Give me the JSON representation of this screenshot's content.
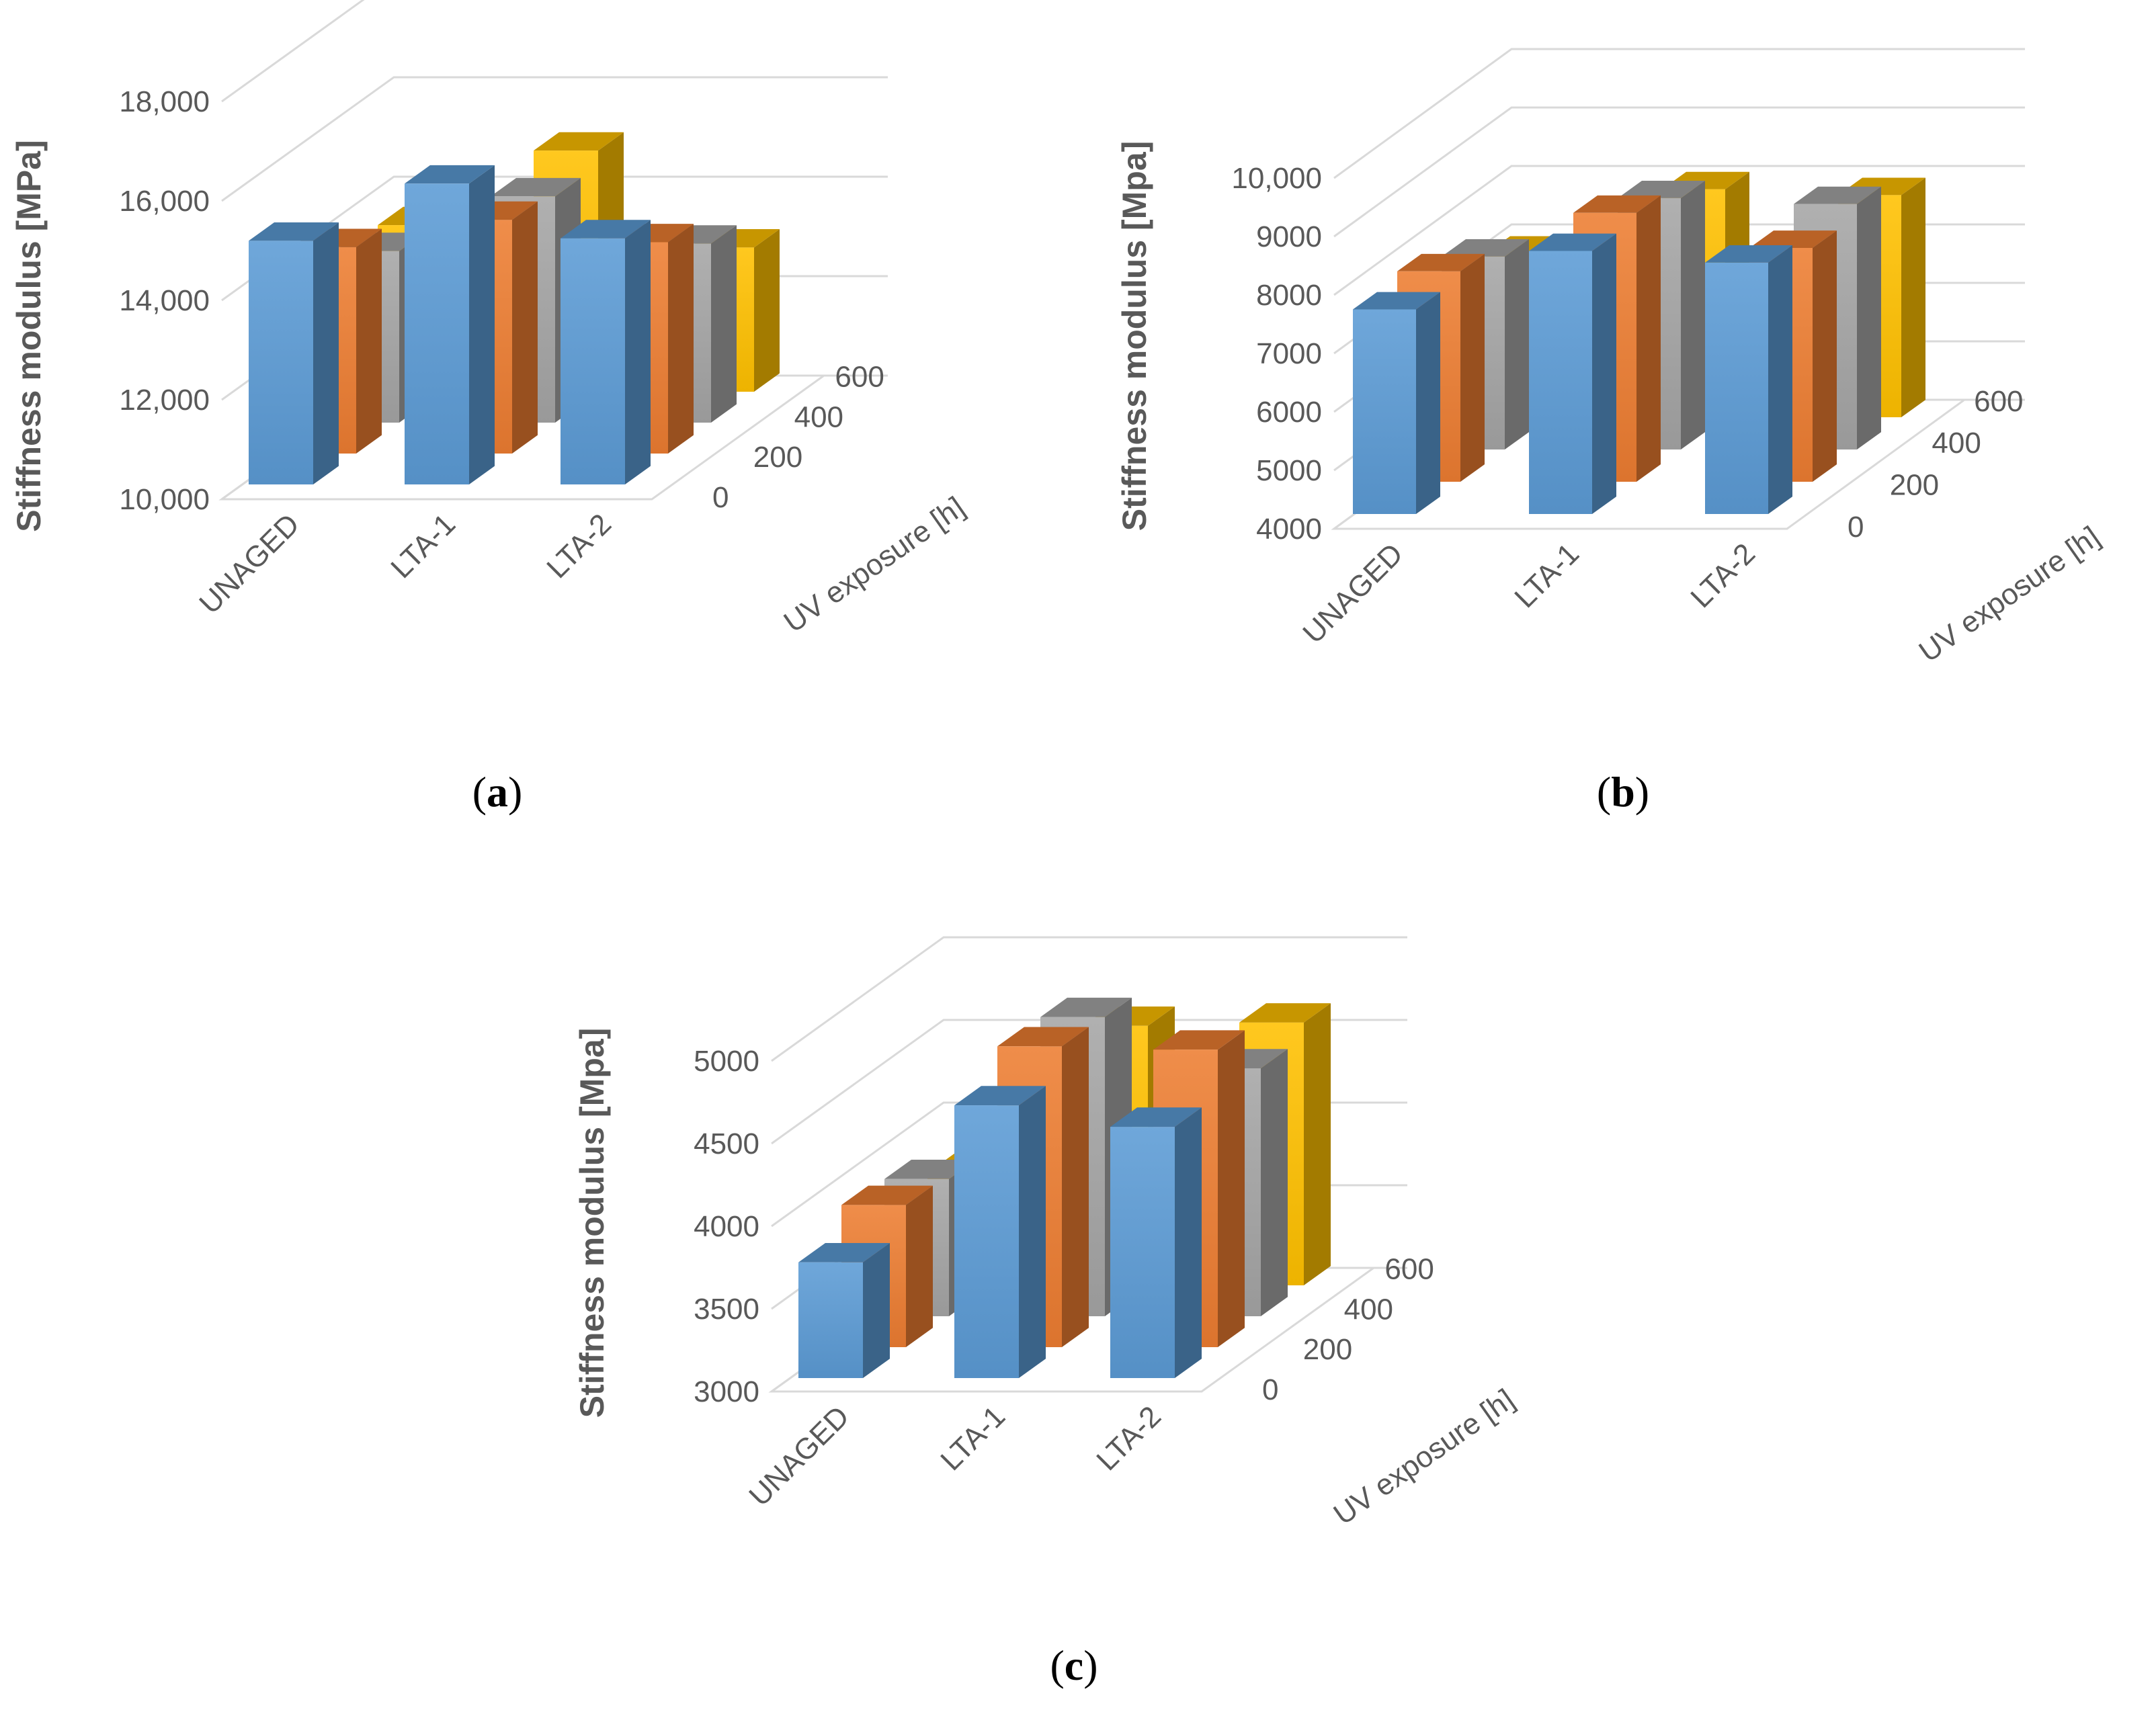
{
  "colors": {
    "series": [
      "#5B9BD5",
      "#ED7D31",
      "#A5A5A5",
      "#FFC000"
    ],
    "gridline": "#D9D9D9",
    "text": "#595959"
  },
  "chart_data": [
    {
      "type": "bar",
      "caption": "a",
      "categories": [
        "UNAGED",
        "LTA-1",
        "LTA-2"
      ],
      "series": [
        {
          "name": "0",
          "values": [
            14900,
            16050,
            14950
          ]
        },
        {
          "name": "200",
          "values": [
            14150,
            14700,
            14250
          ]
        },
        {
          "name": "400",
          "values": [
            13450,
            14550,
            13600
          ]
        },
        {
          "name": "600",
          "values": [
            13350,
            14850,
            12900
          ]
        }
      ],
      "yticks": [
        "10,000",
        "12,000",
        "14,000",
        "16,000",
        "18,000"
      ],
      "ylim": [
        10000,
        18000
      ],
      "ylabel": "Stiffness modulus [MPa]",
      "zlabel": "UV exposure [h]",
      "zticks": [
        "0",
        "200",
        "400",
        "600"
      ]
    },
    {
      "type": "bar",
      "caption": "b",
      "categories": [
        "UNAGED",
        "LTA-1",
        "LTA-2"
      ],
      "series": [
        {
          "name": "0",
          "values": [
            7500,
            8500,
            8300
          ]
        },
        {
          "name": "200",
          "values": [
            7600,
            8600,
            8000
          ]
        },
        {
          "name": "400",
          "values": [
            7300,
            8300,
            8200
          ]
        },
        {
          "name": "600",
          "values": [
            6800,
            7900,
            7800
          ]
        }
      ],
      "yticks": [
        "4000",
        "5000",
        "6000",
        "7000",
        "8000",
        "9000",
        "10,000"
      ],
      "ylim": [
        4000,
        10000
      ],
      "ylabel": "Stiffness modulus [Mpa]",
      "zlabel": "UV exposure [h]",
      "zticks": [
        "0",
        "200",
        "400",
        "600"
      ]
    },
    {
      "type": "bar",
      "caption": "c",
      "categories": [
        "UNAGED",
        "LTA-1",
        "LTA-2"
      ],
      "series": [
        {
          "name": "0",
          "values": [
            3700,
            4650,
            4520
          ]
        },
        {
          "name": "200",
          "values": [
            3860,
            4820,
            4800
          ]
        },
        {
          "name": "400",
          "values": [
            3830,
            4810,
            4500
          ]
        },
        {
          "name": "600",
          "values": [
            3680,
            4570,
            4590
          ]
        }
      ],
      "yticks": [
        "3000",
        "3500",
        "4000",
        "4500",
        "5000"
      ],
      "ylim": [
        3000,
        5000
      ],
      "ylabel": "Stiffness modulus [Mpa]",
      "zlabel": "UV exposure [h]",
      "zticks": [
        "0",
        "200",
        "400",
        "600"
      ]
    }
  ]
}
